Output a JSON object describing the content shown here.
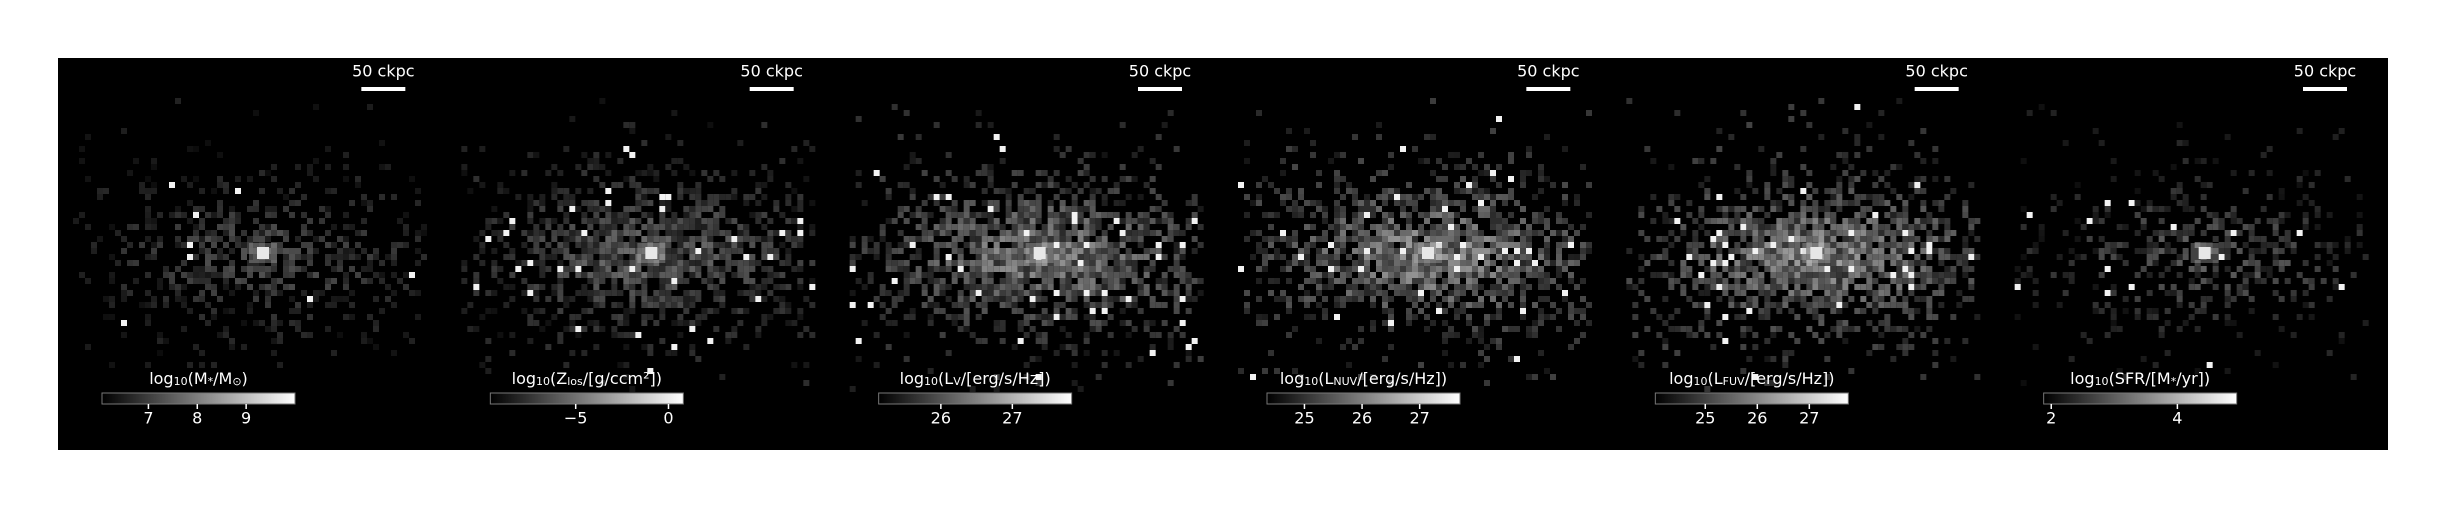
{
  "chart_data": [
    {
      "type": "image",
      "scalebar": "50 ckpc",
      "colorbar": {
        "label": [
          "log",
          "10",
          "(M",
          "*",
          "/M",
          "⊙",
          ")"
        ],
        "clim": [
          6.05,
          10
        ],
        "ticks": [
          7,
          8,
          9
        ]
      }
    },
    {
      "type": "image",
      "scalebar": "50 ckpc",
      "colorbar": {
        "label": [
          "log",
          "10",
          "(Z",
          "los",
          "/[g/ccm²])"
        ],
        "clim": [
          -9.6,
          0.8
        ],
        "ticks": [
          {
            "value": -5,
            "label": "−5"
          },
          0
        ]
      }
    },
    {
      "type": "image",
      "scalebar": "50 ckpc",
      "colorbar": {
        "label": [
          "log",
          "10",
          "(L",
          "V",
          "/[erg/s/Hz])"
        ],
        "clim": [
          25.13,
          27.83
        ],
        "ticks": [
          26,
          27
        ]
      }
    },
    {
      "type": "image",
      "scalebar": "50 ckpc",
      "colorbar": {
        "label": [
          "log",
          "10",
          "(L",
          "NUV",
          "/[erg/s/Hz])"
        ],
        "clim": [
          24.35,
          27.7
        ],
        "ticks": [
          25,
          26,
          27
        ]
      }
    },
    {
      "type": "image",
      "scalebar": "50 ckpc",
      "colorbar": {
        "label": [
          "log",
          "10",
          "(L",
          "FUV",
          "/[erg/s/Hz])"
        ],
        "clim": [
          24.04,
          27.75
        ],
        "ticks": [
          25,
          26,
          27
        ]
      }
    },
    {
      "type": "image",
      "scalebar": "50 ckpc",
      "colorbar": {
        "label": [
          "log",
          "10",
          "(SFR/[M",
          "*",
          "/yr])"
        ],
        "clim": [
          1.88,
          4.94
        ],
        "ticks": [
          2,
          4
        ]
      }
    }
  ]
}
